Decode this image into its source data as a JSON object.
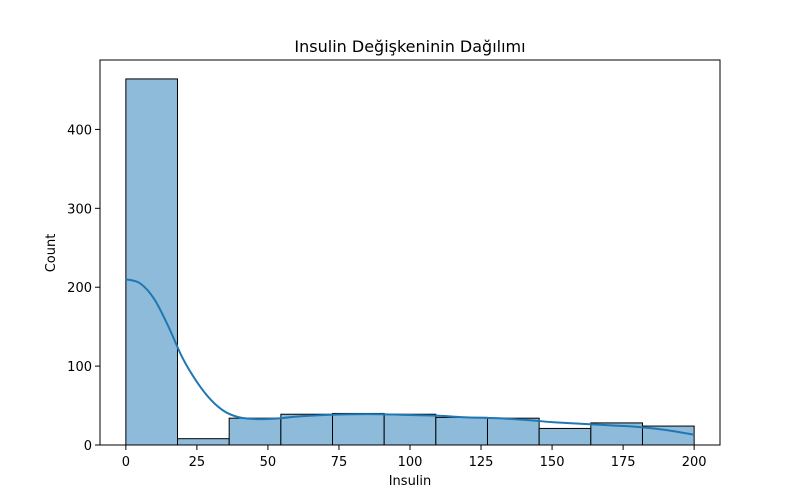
{
  "chart_data": {
    "type": "bar",
    "title": "Insulin Değişkeninin Dağılımı",
    "xlabel": "Insulin",
    "ylabel": "Count",
    "xlim": [
      -9.1,
      209.1
    ],
    "ylim": [
      0,
      488
    ],
    "xticks": [
      0,
      25,
      50,
      75,
      100,
      125,
      150,
      175,
      200
    ],
    "yticks": [
      0,
      100,
      200,
      300,
      400
    ],
    "grid": false,
    "bar_color": "#8fbbda",
    "bar_edge_color": "#000000",
    "line_color": "#1f77b4",
    "bins": [
      {
        "x0": 0.0,
        "x1": 18.18,
        "count": 464
      },
      {
        "x0": 18.18,
        "x1": 36.36,
        "count": 8
      },
      {
        "x0": 36.36,
        "x1": 54.55,
        "count": 34
      },
      {
        "x0": 54.55,
        "x1": 72.73,
        "count": 39
      },
      {
        "x0": 72.73,
        "x1": 90.91,
        "count": 40
      },
      {
        "x0": 90.91,
        "x1": 109.09,
        "count": 39
      },
      {
        "x0": 109.09,
        "x1": 127.27,
        "count": 35
      },
      {
        "x0": 127.27,
        "x1": 145.45,
        "count": 34
      },
      {
        "x0": 145.45,
        "x1": 163.64,
        "count": 21
      },
      {
        "x0": 163.64,
        "x1": 181.82,
        "count": 28
      },
      {
        "x0": 181.82,
        "x1": 200.0,
        "count": 24
      }
    ],
    "kde": {
      "name": "",
      "x": [
        0,
        5,
        10,
        15,
        20,
        25,
        30,
        35,
        40,
        45,
        50,
        55,
        60,
        70,
        80,
        90,
        100,
        110,
        120,
        130,
        140,
        150,
        160,
        170,
        180,
        190,
        200
      ],
      "y": [
        210,
        205,
        185,
        150,
        110,
        80,
        57,
        42,
        35,
        33,
        33,
        34,
        36,
        38,
        39,
        39,
        38,
        37,
        35,
        34,
        32,
        29,
        27,
        25,
        23,
        19,
        13
      ]
    }
  }
}
